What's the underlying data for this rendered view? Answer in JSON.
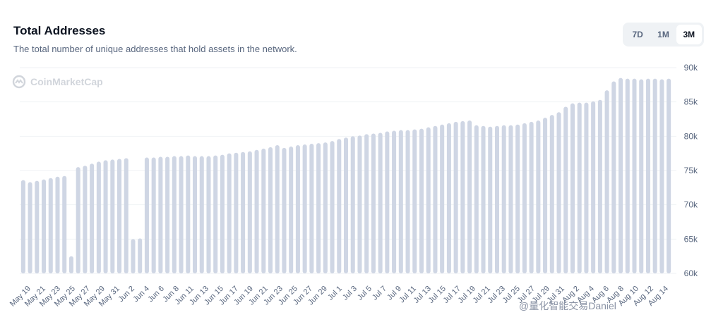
{
  "header": {
    "title": "Total Addresses",
    "subtitle": "The total number of unique addresses that hold assets in the network."
  },
  "range_selector": {
    "options": [
      "7D",
      "1M",
      "3M"
    ],
    "selected": "3M"
  },
  "watermark": {
    "text": "CoinMarketCap"
  },
  "social_watermark": {
    "text": "@量化智能交易Daniel"
  },
  "colors": {
    "bar": "#cfd6e4",
    "grid": "#eff2f5",
    "axis_text": "#58667e",
    "title": "#0d1421"
  },
  "chart_data": {
    "type": "bar",
    "title": "Total Addresses",
    "xlabel": "",
    "ylabel": "",
    "ylim": [
      60000,
      90000
    ],
    "yticks": [
      60000,
      65000,
      70000,
      75000,
      80000,
      85000,
      90000
    ],
    "ytick_labels": [
      "60k",
      "65k",
      "70k",
      "75k",
      "80k",
      "85k",
      "90k"
    ],
    "grid": true,
    "x_tick_labels": [
      "May 19",
      "May 21",
      "May 23",
      "May 25",
      "May 27",
      "May 29",
      "May 31",
      "Jun 2",
      "Jun 4",
      "Jun 6",
      "Jun 8",
      "Jun 11",
      "Jun 13",
      "Jun 15",
      "Jun 17",
      "Jun 19",
      "Jun 21",
      "Jun 23",
      "Jun 25",
      "Jun 27",
      "Jun 29",
      "Jul 1",
      "Jul 3",
      "Jul 5",
      "Jul 7",
      "Jul 9",
      "Jul 11",
      "Jul 13",
      "Jul 15",
      "Jul 17",
      "Jul 19",
      "Jul 21",
      "Jul 23",
      "Jul 25",
      "Jul 27",
      "Jul 29",
      "Jul 31",
      "Aug 2",
      "Aug 4",
      "Aug 6",
      "Aug 8",
      "Aug 10",
      "Aug 12",
      "Aug 14"
    ],
    "values": [
      73600,
      73300,
      73500,
      73700,
      73900,
      74100,
      74200,
      62500,
      75500,
      75700,
      76000,
      76300,
      76500,
      76600,
      76700,
      76800,
      65000,
      65100,
      76900,
      76900,
      77000,
      77000,
      77100,
      77100,
      77200,
      77100,
      77100,
      77100,
      77200,
      77300,
      77500,
      77600,
      77700,
      77800,
      78000,
      78200,
      78400,
      78700,
      78300,
      78500,
      78700,
      78800,
      78900,
      79000,
      79100,
      79300,
      79600,
      79800,
      80000,
      80100,
      80300,
      80400,
      80500,
      80700,
      80800,
      80900,
      80900,
      81000,
      81100,
      81300,
      81500,
      81700,
      81900,
      82100,
      82200,
      82300,
      81600,
      81500,
      81400,
      81500,
      81600,
      81600,
      81700,
      81900,
      82100,
      82300,
      82700,
      83100,
      83500,
      84300,
      84800,
      84900,
      84900,
      85100,
      85300,
      86700,
      88000,
      88500,
      88400,
      88400,
      88300,
      88400,
      88400,
      88300,
      88400
    ]
  }
}
